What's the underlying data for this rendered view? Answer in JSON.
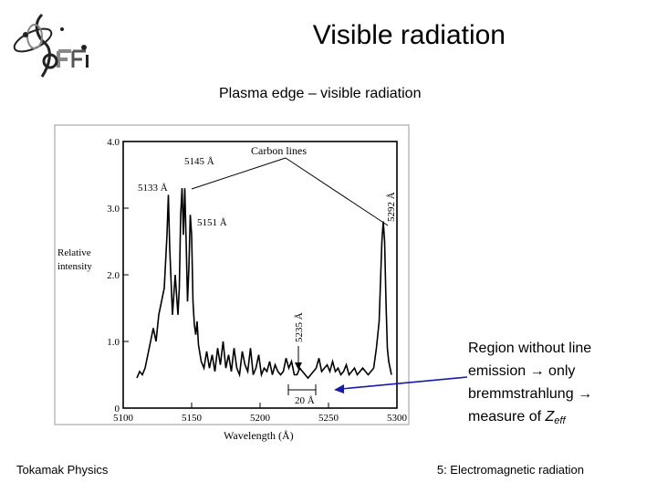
{
  "slide": {
    "title": "Visible radiation",
    "subtitle": "Plasma edge – visible radiation",
    "footer_left": "Tokamak Physics",
    "footer_right": "5: Electromagnetic radiation"
  },
  "note": {
    "line1": "Region without line",
    "line2_pre": "emission",
    "arrow": "→",
    "line2_post": " only",
    "line3_pre": "bremmstrahlung",
    "line3_post": "",
    "line4_pre": "measure of ",
    "line4_var": "Z",
    "line4_sub": "eff"
  },
  "colors": {
    "note_arrow": "#1a1aa8",
    "logo_dark": "#222222",
    "logo_shade": "#888888"
  },
  "chart_data": {
    "type": "line",
    "title": "",
    "xlabel": "Wavelength (Å)",
    "ylabel_line1": "Relative",
    "ylabel_line2": "intensity",
    "xlim": [
      5100,
      5300
    ],
    "ylim": [
      0,
      4.0
    ],
    "xticks": [
      5100,
      5150,
      5200,
      5250,
      5300
    ],
    "xtick_labels": [
      "5100",
      "5150",
      "5200",
      "5250",
      "5300"
    ],
    "yticks": [
      0,
      1.0,
      2.0,
      3.0,
      4.0
    ],
    "ytick_labels": [
      "0",
      "1.0",
      "2.0",
      "3.0",
      "4.0"
    ],
    "grid": false,
    "series": [
      {
        "x": [
          5110,
          5112,
          5114,
          5116,
          5118,
          5120,
          5122,
          5124,
          5126,
          5128,
          5130,
          5132,
          5133,
          5134,
          5136,
          5137,
          5138,
          5139,
          5140,
          5141,
          5142,
          5143,
          5144,
          5145,
          5146,
          5147,
          5148,
          5149,
          5150,
          5151,
          5152,
          5153,
          5154,
          5155,
          5157,
          5159,
          5161,
          5163,
          5165,
          5167,
          5169,
          5171,
          5173,
          5175,
          5177,
          5179,
          5181,
          5183,
          5185,
          5187,
          5189,
          5191,
          5193,
          5195,
          5197,
          5199,
          5201,
          5203,
          5205,
          5207,
          5209,
          5211,
          5213,
          5215,
          5217,
          5219,
          5221,
          5223,
          5225,
          5227,
          5229,
          5231,
          5233,
          5235,
          5237,
          5239,
          5241,
          5243,
          5245,
          5247,
          5249,
          5251,
          5253,
          5255,
          5257,
          5259,
          5261,
          5263,
          5265,
          5267,
          5269,
          5271,
          5273,
          5275,
          5277,
          5279,
          5281,
          5283,
          5285,
          5287,
          5288,
          5289,
          5290,
          5291,
          5292,
          5293,
          5294,
          5295,
          5296
        ],
        "y": [
          0.45,
          0.55,
          0.5,
          0.6,
          0.8,
          1.0,
          1.2,
          1.0,
          1.4,
          1.6,
          1.8,
          2.6,
          3.2,
          2.4,
          1.4,
          1.7,
          2.0,
          1.7,
          1.4,
          1.8,
          2.9,
          3.3,
          2.6,
          3.3,
          2.5,
          1.6,
          2.1,
          2.9,
          2.6,
          1.6,
          1.25,
          1.1,
          1.3,
          0.95,
          0.7,
          0.6,
          0.85,
          0.6,
          0.8,
          0.55,
          0.9,
          0.65,
          1.0,
          0.6,
          0.8,
          0.55,
          0.9,
          0.6,
          0.5,
          0.85,
          0.65,
          0.55,
          0.9,
          0.5,
          0.6,
          0.8,
          0.5,
          0.6,
          0.55,
          0.7,
          0.5,
          0.65,
          0.55,
          0.5,
          0.55,
          0.75,
          0.6,
          0.7,
          0.5,
          0.5,
          0.6,
          0.55,
          0.5,
          0.45,
          0.5,
          0.55,
          0.6,
          0.75,
          0.55,
          0.6,
          0.65,
          0.55,
          0.7,
          0.55,
          0.6,
          0.5,
          0.55,
          0.65,
          0.5,
          0.55,
          0.6,
          0.5,
          0.55,
          0.6,
          0.55,
          0.5,
          0.55,
          0.6,
          0.9,
          1.3,
          1.9,
          2.5,
          2.8,
          2.5,
          1.6,
          0.9,
          0.7,
          0.6,
          0.5
        ]
      }
    ],
    "annotations": {
      "carbon_lines": "Carbon lines",
      "l5133": "5133 Å",
      "l5145": "5145 Å",
      "l5151": "5151 Å",
      "l5292": "5292 Å",
      "l5235": "5235 Å",
      "scale_bar": "20 Å"
    }
  }
}
